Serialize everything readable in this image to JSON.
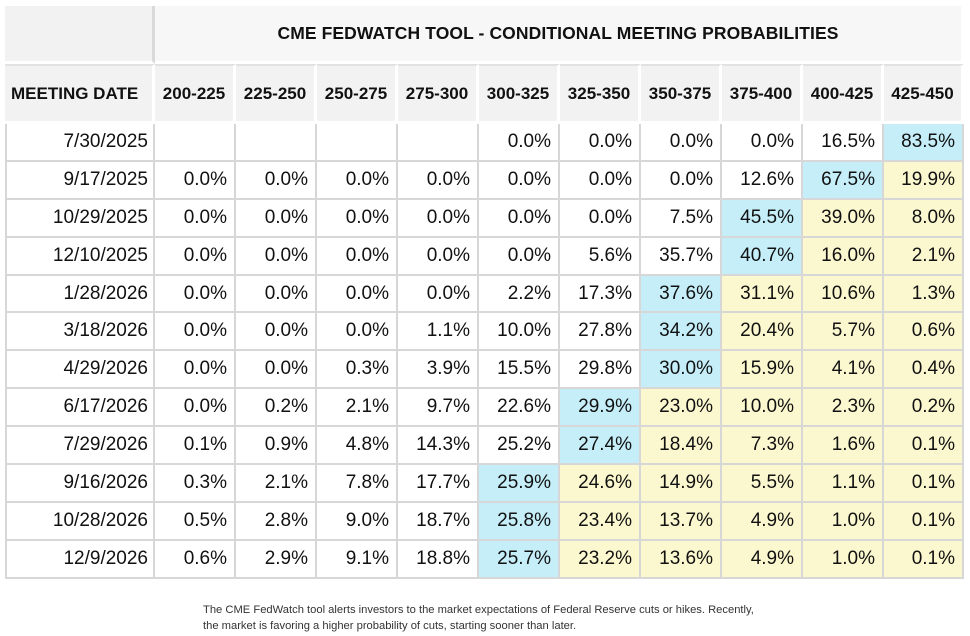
{
  "chart_data": {
    "type": "table",
    "title": "CME FEDWATCH TOOL - CONDITIONAL MEETING PROBABILITIES",
    "columns": [
      "MEETING DATE",
      "200-225",
      "225-250",
      "250-275",
      "275-300",
      "300-325",
      "325-350",
      "350-375",
      "375-400",
      "400-425",
      "425-450"
    ],
    "rows": [
      {
        "date": "7/30/2025",
        "values": [
          "",
          "",
          "",
          "",
          "0.0%",
          "0.0%",
          "0.0%",
          "0.0%",
          "16.5%",
          "83.5%"
        ]
      },
      {
        "date": "9/17/2025",
        "values": [
          "0.0%",
          "0.0%",
          "0.0%",
          "0.0%",
          "0.0%",
          "0.0%",
          "0.0%",
          "12.6%",
          "67.5%",
          "19.9%"
        ]
      },
      {
        "date": "10/29/2025",
        "values": [
          "0.0%",
          "0.0%",
          "0.0%",
          "0.0%",
          "0.0%",
          "0.0%",
          "7.5%",
          "45.5%",
          "39.0%",
          "8.0%"
        ]
      },
      {
        "date": "12/10/2025",
        "values": [
          "0.0%",
          "0.0%",
          "0.0%",
          "0.0%",
          "0.0%",
          "5.6%",
          "35.7%",
          "40.7%",
          "16.0%",
          "2.1%"
        ]
      },
      {
        "date": "1/28/2026",
        "values": [
          "0.0%",
          "0.0%",
          "0.0%",
          "0.0%",
          "2.2%",
          "17.3%",
          "37.6%",
          "31.1%",
          "10.6%",
          "1.3%"
        ]
      },
      {
        "date": "3/18/2026",
        "values": [
          "0.0%",
          "0.0%",
          "0.0%",
          "1.1%",
          "10.0%",
          "27.8%",
          "34.2%",
          "20.4%",
          "5.7%",
          "0.6%"
        ]
      },
      {
        "date": "4/29/2026",
        "values": [
          "0.0%",
          "0.0%",
          "0.3%",
          "3.9%",
          "15.5%",
          "29.8%",
          "30.0%",
          "15.9%",
          "4.1%",
          "0.4%"
        ]
      },
      {
        "date": "6/17/2026",
        "values": [
          "0.0%",
          "0.2%",
          "2.1%",
          "9.7%",
          "22.6%",
          "29.9%",
          "23.0%",
          "10.0%",
          "2.3%",
          "0.2%"
        ]
      },
      {
        "date": "7/29/2026",
        "values": [
          "0.1%",
          "0.9%",
          "4.8%",
          "14.3%",
          "25.2%",
          "27.4%",
          "18.4%",
          "7.3%",
          "1.6%",
          "0.1%"
        ]
      },
      {
        "date": "9/16/2026",
        "values": [
          "0.3%",
          "2.1%",
          "7.8%",
          "17.7%",
          "25.9%",
          "24.6%",
          "14.9%",
          "5.5%",
          "1.1%",
          "0.1%"
        ]
      },
      {
        "date": "10/28/2026",
        "values": [
          "0.5%",
          "2.8%",
          "9.0%",
          "18.7%",
          "25.8%",
          "23.4%",
          "13.7%",
          "4.9%",
          "1.0%",
          "0.1%"
        ]
      },
      {
        "date": "12/9/2026",
        "values": [
          "0.6%",
          "2.9%",
          "9.1%",
          "18.8%",
          "25.7%",
          "23.2%",
          "13.6%",
          "4.9%",
          "1.0%",
          "0.1%"
        ]
      }
    ],
    "highlight": {
      "max_color": "#c5eef9",
      "above_max_color": "#fbf8cf"
    }
  },
  "caption": "The CME FedWatch tool alerts investors to the market expectations of Federal Reserve cuts or hikes. Recently, the market is favoring a higher probability of cuts, starting sooner than later."
}
